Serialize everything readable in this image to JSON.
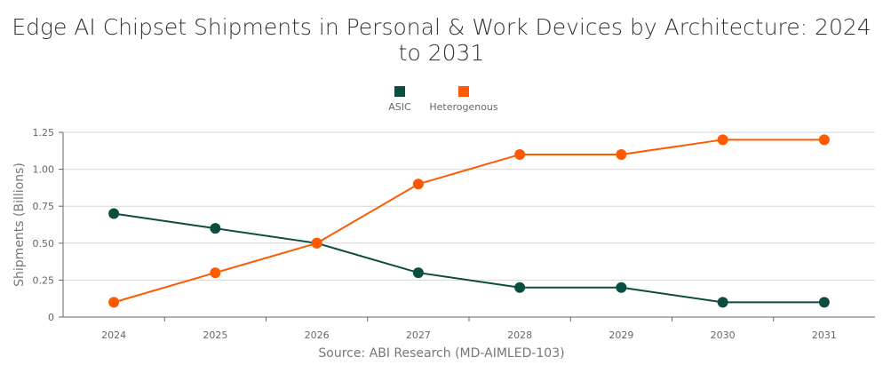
{
  "chart_data": {
    "type": "line",
    "title": "Edge AI Chipset Shipments in Personal & Work Devices by Architecture: 2024 to 2031",
    "ylabel": "Shipments (Billions)",
    "xlabel": "",
    "categories": [
      "2024",
      "2025",
      "2026",
      "2027",
      "2028",
      "2029",
      "2030",
      "2031"
    ],
    "ylim": [
      0,
      1.25
    ],
    "yticks": [
      "0",
      "0.25",
      "0.50",
      "0.75",
      "1.00",
      "1.25"
    ],
    "grid": true,
    "legend": "top",
    "series": [
      {
        "name": "ASIC",
        "color": "#0b4d40",
        "values": [
          0.7,
          0.6,
          0.5,
          0.3,
          0.2,
          0.2,
          0.1,
          0.1
        ]
      },
      {
        "name": "Heterogenous",
        "color": "#ff5a00",
        "values": [
          0.1,
          0.3,
          0.5,
          0.9,
          1.1,
          1.1,
          1.2,
          1.2
        ]
      }
    ],
    "source": "Source: ABI Research (MD-AIMLED-103)"
  }
}
